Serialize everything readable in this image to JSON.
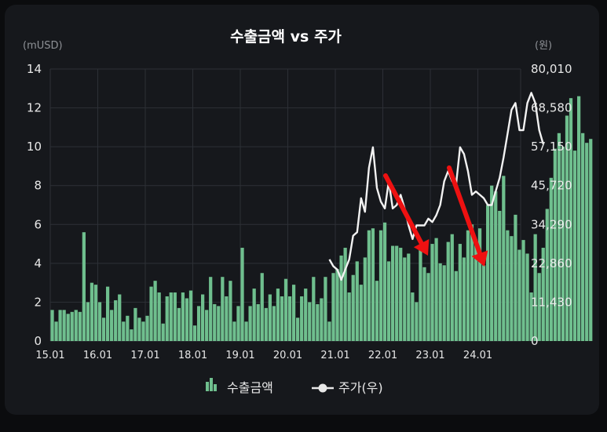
{
  "chart_data": {
    "type": "bar+line",
    "title": "수출금액 vs 주가",
    "y_left": {
      "unit": "(mUSD)",
      "ticks": [
        "0",
        "2",
        "4",
        "6",
        "8",
        "10",
        "12",
        "14"
      ],
      "range": [
        0,
        14
      ]
    },
    "y_right": {
      "unit": "(원)",
      "ticks": [
        "0",
        "11,430",
        "22,860",
        "34,290",
        "45,720",
        "57,150",
        "68,580",
        "80,010"
      ],
      "range": [
        0,
        80010
      ]
    },
    "x_ticks": [
      "15.01",
      "16.01",
      "17.01",
      "18.01",
      "19.01",
      "20.01",
      "21.01",
      "22.01",
      "23.01",
      "24.01"
    ],
    "grid": true,
    "legend": {
      "position": "bottom",
      "items": [
        {
          "label": "수출금액",
          "kind": "bar"
        },
        {
          "label": "주가(우)",
          "kind": "line"
        }
      ]
    },
    "series": [
      {
        "name": "수출금액",
        "type": "bar",
        "axis": "left",
        "start": "2015-01",
        "values": [
          1.6,
          1.0,
          1.6,
          1.6,
          1.4,
          1.5,
          1.6,
          1.5,
          5.6,
          2.0,
          3.0,
          2.9,
          2.0,
          1.2,
          2.8,
          1.6,
          2.1,
          2.4,
          1.0,
          1.3,
          0.6,
          1.7,
          1.2,
          1.0,
          1.3,
          2.8,
          3.1,
          2.5,
          0.9,
          2.3,
          2.5,
          2.5,
          1.7,
          2.5,
          2.2,
          2.6,
          0.8,
          1.8,
          2.4,
          1.6,
          3.3,
          1.9,
          1.8,
          3.3,
          2.3,
          3.1,
          1.0,
          1.8,
          4.8,
          1.0,
          1.8,
          2.7,
          1.9,
          3.5,
          1.7,
          2.4,
          1.8,
          2.7,
          2.3,
          3.2,
          2.3,
          2.9,
          1.2,
          2.3,
          2.7,
          2.0,
          3.3,
          1.9,
          2.2,
          3.3,
          1.0,
          3.5,
          3.7,
          4.4,
          4.8,
          2.5,
          3.4,
          4.1,
          2.9,
          4.3,
          5.7,
          5.8,
          3.1,
          5.7,
          6.1,
          4.1,
          4.9,
          4.9,
          4.8,
          4.3,
          4.5,
          2.5,
          2.0,
          4.9,
          3.8,
          3.5,
          5.0,
          5.3,
          4.0,
          3.9,
          5.1,
          5.5,
          3.6,
          5.0,
          4.3,
          5.7,
          6.0,
          5.0,
          5.8,
          3.9,
          7.0,
          8.0,
          7.7,
          6.7,
          8.5,
          5.7,
          5.4,
          6.5,
          4.7,
          5.2,
          4.5,
          2.5,
          5.5,
          3.5,
          4.8,
          6.8,
          8.4,
          9.9,
          10.7,
          10.0,
          11.6,
          12.5,
          9.8,
          12.6,
          10.7,
          10.2,
          10.4
        ]
      },
      {
        "name": "주가(우)",
        "type": "line",
        "axis": "right",
        "start": "2020-11",
        "values": [
          24000,
          22000,
          21000,
          18000,
          21000,
          24000,
          31000,
          32000,
          42000,
          38000,
          51000,
          57000,
          45000,
          41000,
          39000,
          47000,
          39000,
          40000,
          43000,
          39000,
          34000,
          30000,
          34000,
          34000,
          34000,
          36000,
          35000,
          37000,
          40000,
          47000,
          50000,
          47000,
          46000,
          57000,
          55000,
          50000,
          43000,
          44000,
          43000,
          42000,
          40000,
          40000,
          44000,
          48000,
          54000,
          61000,
          68000,
          70000,
          62000,
          62000,
          70000,
          73000,
          70000,
          62000,
          58000
        ]
      }
    ]
  }
}
